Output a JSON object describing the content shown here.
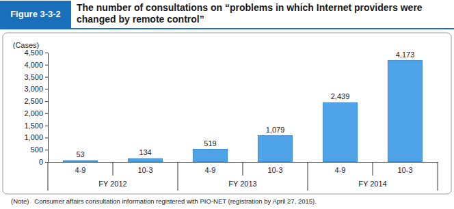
{
  "chart_data": {
    "type": "bar",
    "figure_label": "Figure 3-3-2",
    "title": "The number of consultations on “problems in which Internet providers were changed by remote control”",
    "y_label": "(Cases)",
    "categories": [
      "4-9",
      "10-3",
      "4-9",
      "10-3",
      "4-9",
      "10-3"
    ],
    "groups": [
      "FY 2012",
      "FY 2013",
      "FY 2014"
    ],
    "values": [
      53,
      134,
      519,
      1079,
      2439,
      4173
    ],
    "value_labels": [
      "53",
      "134",
      "519",
      "1,079",
      "2,439",
      "4,173"
    ],
    "color": "#4ea2e6",
    "ylim": [
      0,
      4500
    ],
    "yticks": [
      0,
      500,
      {
        "value": 1000,
        "label": "1,000"
      },
      {
        "value": 1500,
        "label": "1,500"
      },
      {
        "value": 2000,
        "label": "2,000"
      },
      {
        "value": 2500,
        "label": "2,500"
      },
      {
        "value": 3000,
        "label": "3,000"
      },
      {
        "value": 3500,
        "label": "3,500"
      },
      {
        "value": 4000,
        "label": "4,000"
      },
      {
        "value": 4500,
        "label": "4,500"
      }
    ],
    "grid": false,
    "data_labels": true,
    "note": "(Note)   Consumer affairs consultation information registered with PIO-NET (registration by April 27, 2015)."
  }
}
